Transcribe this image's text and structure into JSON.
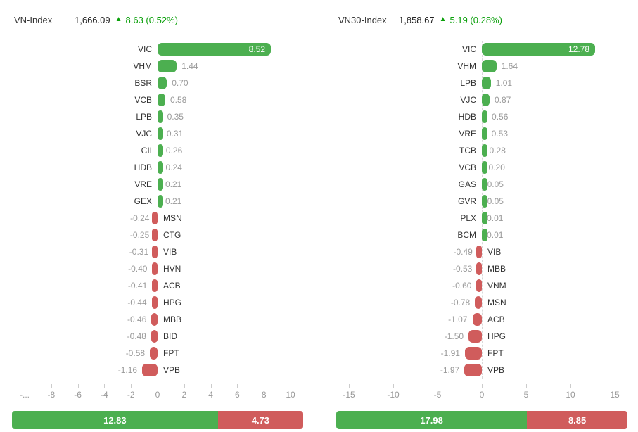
{
  "colors": {
    "bar_green": "#4caf50",
    "bar_red": "#d05c5c",
    "up_text_green": "#0ba00b",
    "ticker_label": "#333333",
    "value_label": "#9a9a9a",
    "axis_label": "#999999"
  },
  "chart_data": [
    {
      "type": "bar",
      "orientation": "horizontal",
      "title": "VN-Index",
      "index_value": "1,666.09",
      "arrow": "▲",
      "index_change": "8.63 (0.52%)",
      "xlim": [
        -10,
        10
      ],
      "axis_ticks": [
        "-...",
        "-8",
        "-6",
        "-4",
        "-2",
        "0",
        "2",
        "4",
        "6",
        "8",
        "10"
      ],
      "bars": [
        {
          "ticker": "VIC",
          "value": 8.52
        },
        {
          "ticker": "VHM",
          "value": 1.44
        },
        {
          "ticker": "BSR",
          "value": 0.7
        },
        {
          "ticker": "VCB",
          "value": 0.58
        },
        {
          "ticker": "LPB",
          "value": 0.35
        },
        {
          "ticker": "VJC",
          "value": 0.31
        },
        {
          "ticker": "CII",
          "value": 0.26
        },
        {
          "ticker": "HDB",
          "value": 0.24
        },
        {
          "ticker": "VRE",
          "value": 0.21
        },
        {
          "ticker": "GEX",
          "value": 0.21
        },
        {
          "ticker": "MSN",
          "value": -0.24
        },
        {
          "ticker": "CTG",
          "value": -0.25
        },
        {
          "ticker": "VIB",
          "value": -0.31
        },
        {
          "ticker": "HVN",
          "value": -0.4
        },
        {
          "ticker": "ACB",
          "value": -0.41
        },
        {
          "ticker": "HPG",
          "value": -0.44
        },
        {
          "ticker": "MBB",
          "value": -0.46
        },
        {
          "ticker": "BID",
          "value": -0.48
        },
        {
          "ticker": "FPT",
          "value": -0.58
        },
        {
          "ticker": "VPB",
          "value": -1.16
        }
      ],
      "totals": {
        "positive": "12.83",
        "negative": "4.73"
      }
    },
    {
      "type": "bar",
      "orientation": "horizontal",
      "title": "VN30-Index",
      "index_value": "1,858.67",
      "arrow": "▲",
      "index_change": "5.19 (0.28%)",
      "xlim": [
        -15,
        15
      ],
      "axis_ticks": [
        "-15",
        "-10",
        "-5",
        "0",
        "5",
        "10",
        "15"
      ],
      "bars": [
        {
          "ticker": "VIC",
          "value": 12.78
        },
        {
          "ticker": "VHM",
          "value": 1.64
        },
        {
          "ticker": "LPB",
          "value": 1.01
        },
        {
          "ticker": "VJC",
          "value": 0.87
        },
        {
          "ticker": "HDB",
          "value": 0.56
        },
        {
          "ticker": "VRE",
          "value": 0.53
        },
        {
          "ticker": "TCB",
          "value": 0.28
        },
        {
          "ticker": "VCB",
          "value": 0.2
        },
        {
          "ticker": "GAS",
          "value": 0.05
        },
        {
          "ticker": "GVR",
          "value": 0.05
        },
        {
          "ticker": "PLX",
          "value": 0.01
        },
        {
          "ticker": "BCM",
          "value": 0.01
        },
        {
          "ticker": "VIB",
          "value": -0.49
        },
        {
          "ticker": "MBB",
          "value": -0.53
        },
        {
          "ticker": "VNM",
          "value": -0.6
        },
        {
          "ticker": "MSN",
          "value": -0.78
        },
        {
          "ticker": "ACB",
          "value": -1.07
        },
        {
          "ticker": "HPG",
          "value": -1.5
        },
        {
          "ticker": "FPT",
          "value": -1.91
        },
        {
          "ticker": "VPB",
          "value": -1.97
        }
      ],
      "totals": {
        "positive": "17.98",
        "negative": "8.85"
      }
    }
  ]
}
